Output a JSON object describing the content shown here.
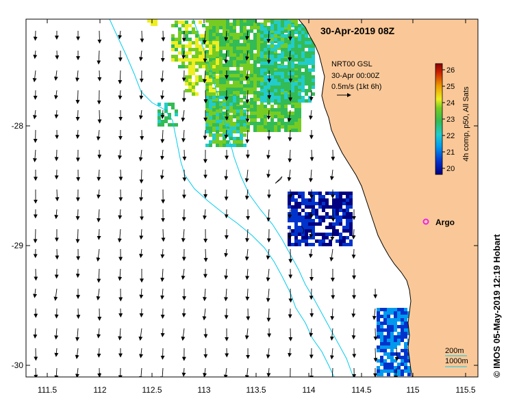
{
  "title": "30-Apr-2019 08Z",
  "legend_block": {
    "line1": "NRT00 GSL",
    "line2": "30-Apr 00:00Z",
    "line3": "0.5m/s (1kt 6h)"
  },
  "colorbar": {
    "label": "4h comp, p50, All Sats",
    "ticks": [
      "26",
      "25",
      "24",
      "23",
      "22",
      "21",
      "20"
    ],
    "range": [
      20,
      26.3
    ],
    "colors": [
      "#000080",
      "#0033cc",
      "#0099ee",
      "#22cccc",
      "#33bb55",
      "#77cc22",
      "#eeee22",
      "#ee9900",
      "#cc2200",
      "#880000"
    ]
  },
  "x_axis": {
    "ticks": [
      "111.5",
      "112",
      "112.5",
      "113",
      "113.5",
      "114",
      "114.5",
      "115",
      "115.5"
    ]
  },
  "y_axis": {
    "ticks": [
      "-28",
      "-29",
      "-30"
    ]
  },
  "argo": {
    "label": "Argo",
    "lon": 115.1,
    "lat": -28.8
  },
  "isobaths": {
    "label_200": "200m",
    "label_1000": "1000m"
  },
  "credit": "© IMOS 05-May-2019 12:19 Hobart",
  "colors": {
    "land": "#fac898",
    "isobath": "#00ccee",
    "argo": "#ee22ee"
  }
}
